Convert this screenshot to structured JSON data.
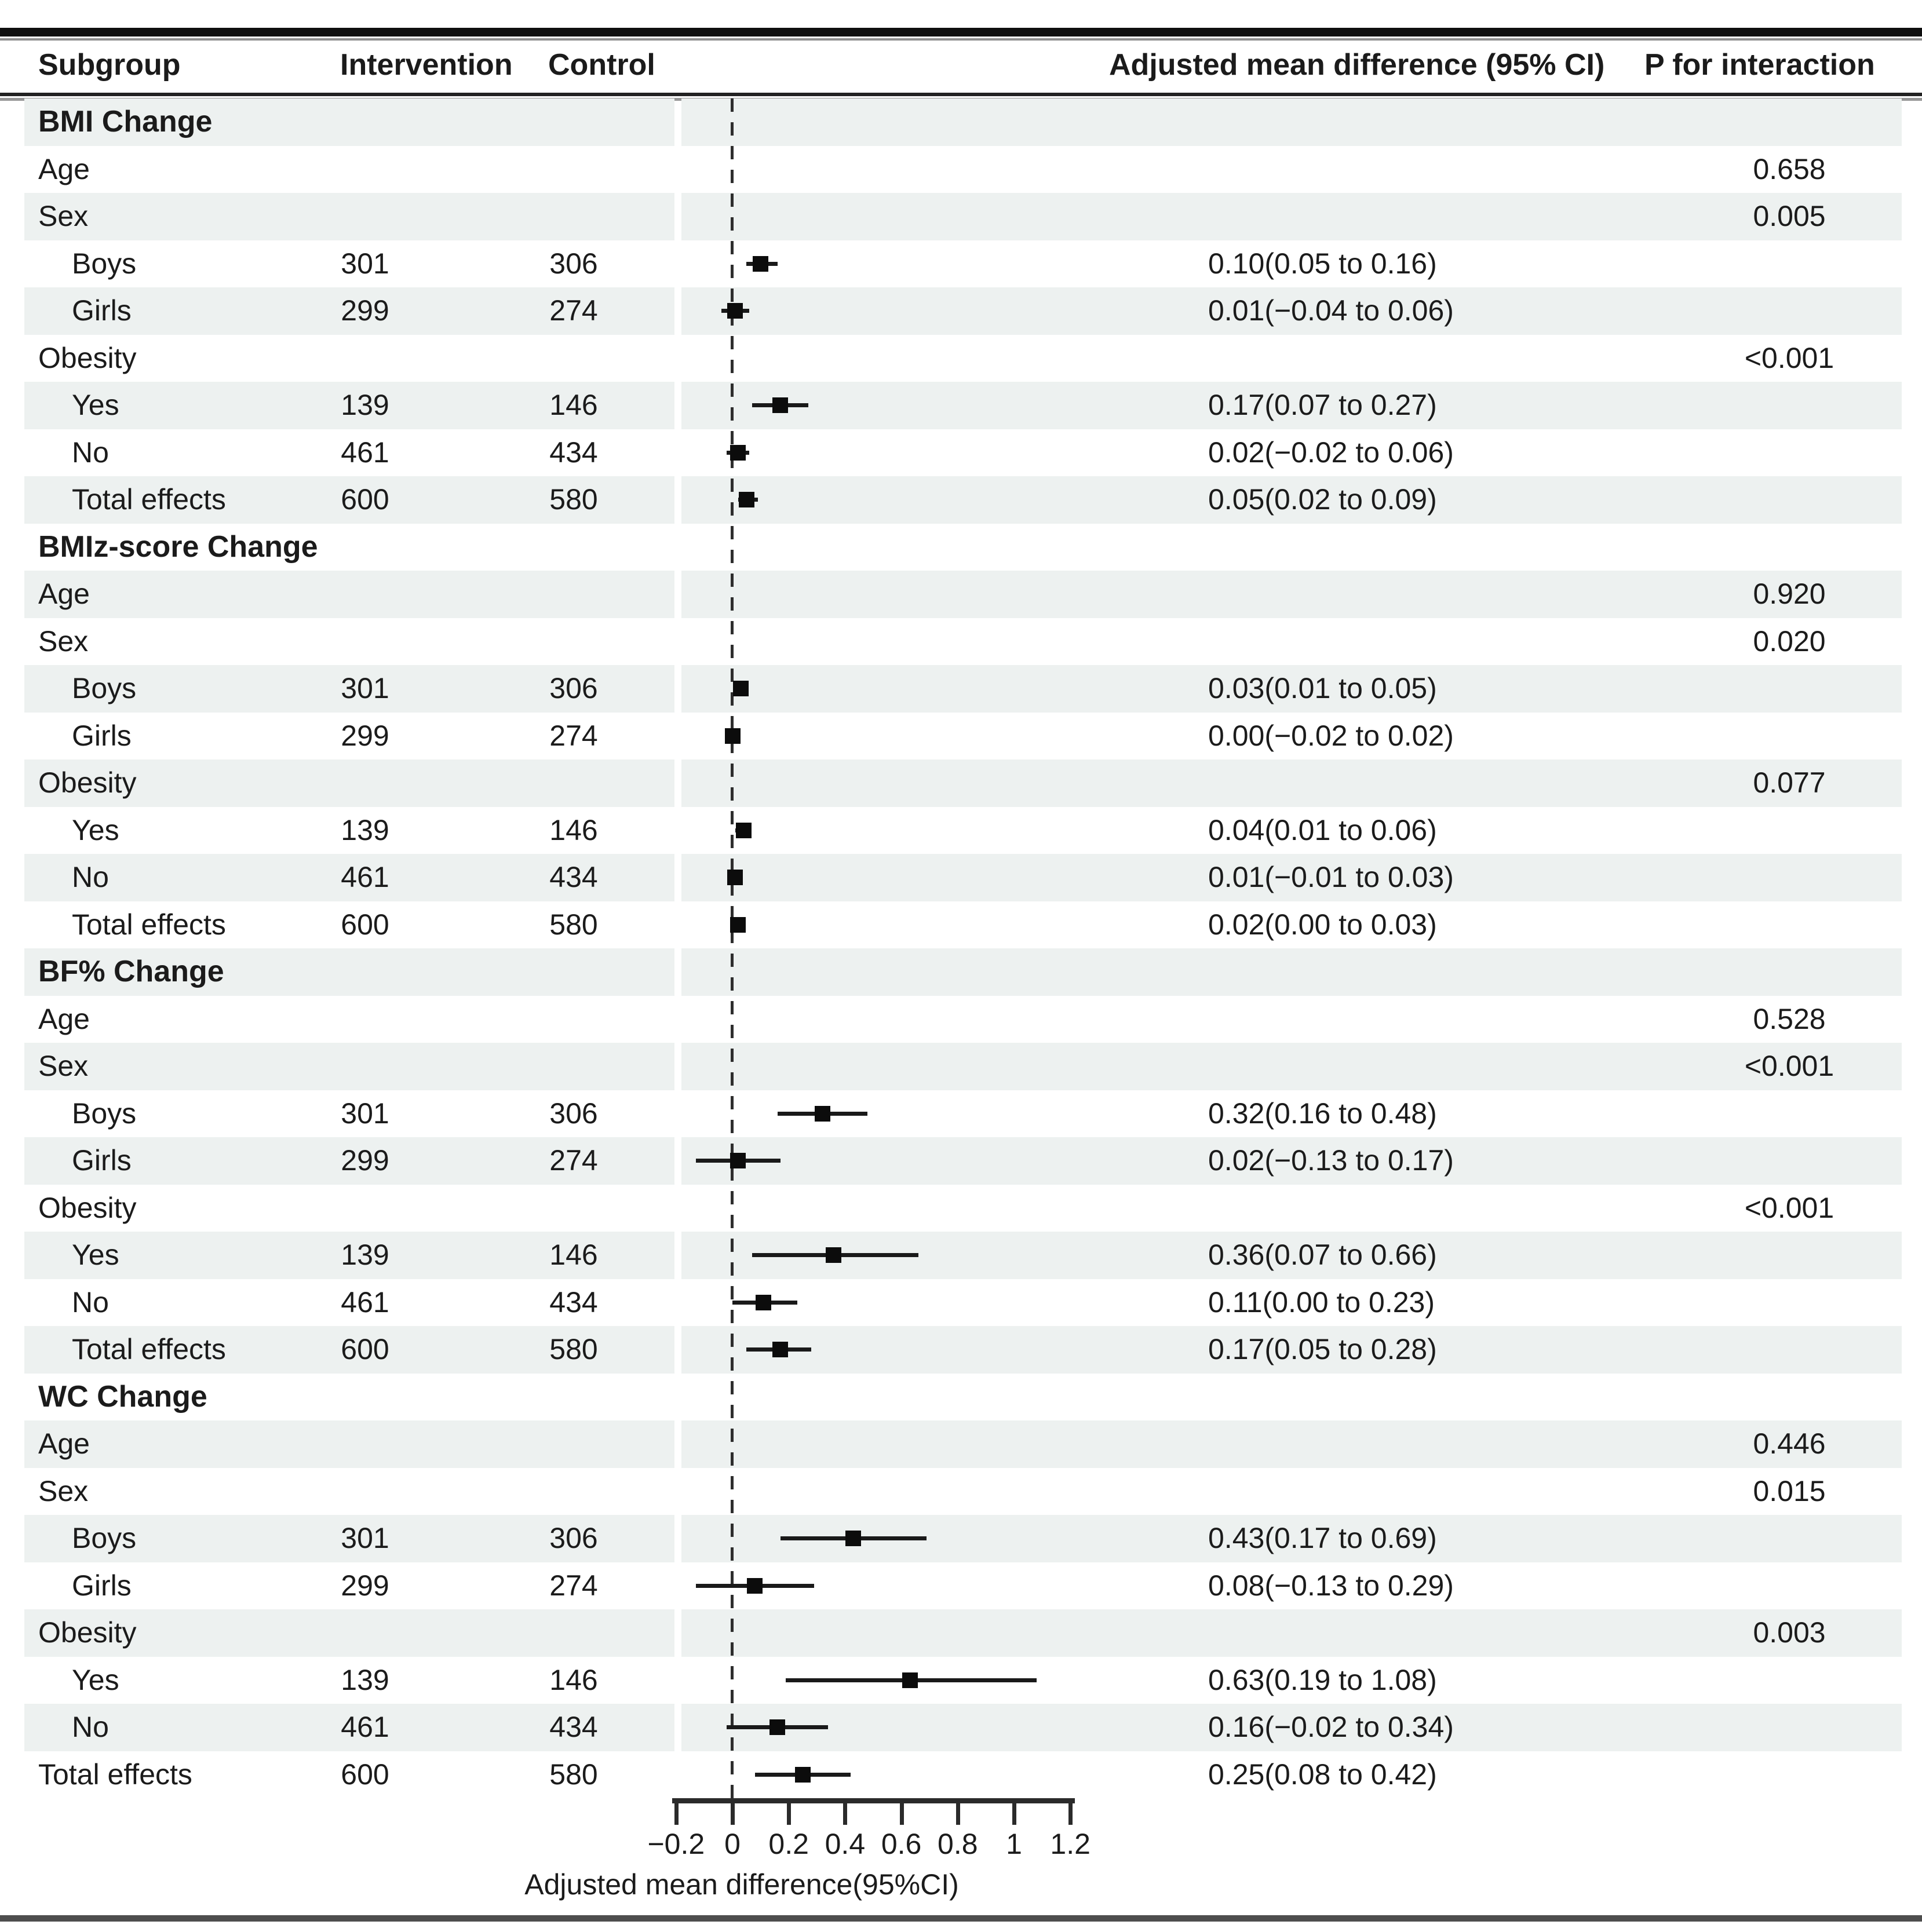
{
  "header": {
    "subgroup": "Subgroup",
    "intervention": "Intervention",
    "control": "Control",
    "effect": "Adjusted mean difference (95% CI)",
    "p": "P for interaction"
  },
  "colors": {
    "band": "#edf1f0",
    "text": "#1b1b1b",
    "marker": "#0c0c0c",
    "zero_line": "#2e2e2e"
  },
  "chart_data": {
    "type": "forest",
    "title": "",
    "xlabel": "Adjusted mean difference(95%CI)",
    "xlim": [
      -0.2,
      1.2
    ],
    "x_ticks": [
      -0.2,
      0,
      0.2,
      0.4,
      0.6,
      0.8,
      1,
      1.2
    ],
    "tick_labels": [
      "−0.2",
      "0",
      "0.2",
      "0.4",
      "0.6",
      "0.8",
      "1",
      "1.2"
    ],
    "zero_line": 0,
    "grid": false,
    "legend": null,
    "groups": [
      {
        "outcome": "BMI Change",
        "rows": [
          {
            "kind": "factor",
            "label": "Age",
            "p": "0.658"
          },
          {
            "kind": "factor",
            "label": "Sex",
            "p": "0.005"
          },
          {
            "kind": "data",
            "label": "Boys",
            "indent": true,
            "intervention": "301",
            "control": "306",
            "est": 0.1,
            "lo": 0.05,
            "hi": 0.16,
            "ci": "0.10(0.05 to 0.16)"
          },
          {
            "kind": "data",
            "label": "Girls",
            "indent": true,
            "intervention": "299",
            "control": "274",
            "est": 0.01,
            "lo": -0.04,
            "hi": 0.06,
            "ci": "0.01(−0.04 to 0.06)"
          },
          {
            "kind": "factor",
            "label": "Obesity",
            "p": "<0.001"
          },
          {
            "kind": "data",
            "label": "Yes",
            "indent": true,
            "intervention": "139",
            "control": "146",
            "est": 0.17,
            "lo": 0.07,
            "hi": 0.27,
            "ci": "0.17(0.07 to 0.27)"
          },
          {
            "kind": "data",
            "label": "No",
            "indent": true,
            "intervention": "461",
            "control": "434",
            "est": 0.02,
            "lo": -0.02,
            "hi": 0.06,
            "ci": "0.02(−0.02 to 0.06)"
          },
          {
            "kind": "data",
            "label": "Total effects",
            "indent": true,
            "intervention": "600",
            "control": "580",
            "est": 0.05,
            "lo": 0.02,
            "hi": 0.09,
            "ci": "0.05(0.02 to 0.09)"
          }
        ]
      },
      {
        "outcome": "BMIz-score Change",
        "rows": [
          {
            "kind": "factor",
            "label": "Age",
            "p": "0.920"
          },
          {
            "kind": "factor",
            "label": "Sex",
            "p": "0.020"
          },
          {
            "kind": "data",
            "label": "Boys",
            "indent": true,
            "intervention": "301",
            "control": "306",
            "est": 0.03,
            "lo": 0.01,
            "hi": 0.05,
            "ci": "0.03(0.01 to 0.05)"
          },
          {
            "kind": "data",
            "label": "Girls",
            "indent": true,
            "intervention": "299",
            "control": "274",
            "est": 0.0,
            "lo": -0.02,
            "hi": 0.02,
            "ci": "0.00(−0.02 to 0.02)"
          },
          {
            "kind": "factor",
            "label": "Obesity",
            "p": "0.077"
          },
          {
            "kind": "data",
            "label": "Yes",
            "indent": true,
            "intervention": "139",
            "control": "146",
            "est": 0.04,
            "lo": 0.01,
            "hi": 0.06,
            "ci": "0.04(0.01 to 0.06)"
          },
          {
            "kind": "data",
            "label": "No",
            "indent": true,
            "intervention": "461",
            "control": "434",
            "est": 0.01,
            "lo": -0.01,
            "hi": 0.03,
            "ci": "0.01(−0.01 to 0.03)"
          },
          {
            "kind": "data",
            "label": "Total effects",
            "indent": true,
            "intervention": "600",
            "control": "580",
            "est": 0.02,
            "lo": 0.0,
            "hi": 0.03,
            "ci": "0.02(0.00 to 0.03)"
          }
        ]
      },
      {
        "outcome": "BF% Change",
        "rows": [
          {
            "kind": "factor",
            "label": "Age",
            "p": "0.528"
          },
          {
            "kind": "factor",
            "label": "Sex",
            "p": "<0.001"
          },
          {
            "kind": "data",
            "label": "Boys",
            "indent": true,
            "intervention": "301",
            "control": "306",
            "est": 0.32,
            "lo": 0.16,
            "hi": 0.48,
            "ci": "0.32(0.16 to 0.48)"
          },
          {
            "kind": "data",
            "label": "Girls",
            "indent": true,
            "intervention": "299",
            "control": "274",
            "est": 0.02,
            "lo": -0.13,
            "hi": 0.17,
            "ci": "0.02(−0.13 to 0.17)"
          },
          {
            "kind": "factor",
            "label": "Obesity",
            "p": "<0.001"
          },
          {
            "kind": "data",
            "label": "Yes",
            "indent": true,
            "intervention": "139",
            "control": "146",
            "est": 0.36,
            "lo": 0.07,
            "hi": 0.66,
            "ci": "0.36(0.07 to 0.66)"
          },
          {
            "kind": "data",
            "label": "No",
            "indent": true,
            "intervention": "461",
            "control": "434",
            "est": 0.11,
            "lo": 0.0,
            "hi": 0.23,
            "ci": "0.11(0.00 to 0.23)"
          },
          {
            "kind": "data",
            "label": "Total effects",
            "indent": true,
            "intervention": "600",
            "control": "580",
            "est": 0.17,
            "lo": 0.05,
            "hi": 0.28,
            "ci": "0.17(0.05 to 0.28)"
          }
        ]
      },
      {
        "outcome": "WC Change",
        "rows": [
          {
            "kind": "factor",
            "label": "Age",
            "p": "0.446"
          },
          {
            "kind": "factor",
            "label": "Sex",
            "p": "0.015"
          },
          {
            "kind": "data",
            "label": "Boys",
            "indent": true,
            "intervention": "301",
            "control": "306",
            "est": 0.43,
            "lo": 0.17,
            "hi": 0.69,
            "ci": "0.43(0.17 to 0.69)"
          },
          {
            "kind": "data",
            "label": "Girls",
            "indent": true,
            "intervention": "299",
            "control": "274",
            "est": 0.08,
            "lo": -0.13,
            "hi": 0.29,
            "ci": "0.08(−0.13 to 0.29)"
          },
          {
            "kind": "factor",
            "label": "Obesity",
            "p": "0.003"
          },
          {
            "kind": "data",
            "label": "Yes",
            "indent": true,
            "intervention": "139",
            "control": "146",
            "est": 0.63,
            "lo": 0.19,
            "hi": 1.08,
            "ci": "0.63(0.19 to 1.08)"
          },
          {
            "kind": "data",
            "label": "No",
            "indent": true,
            "intervention": "461",
            "control": "434",
            "est": 0.16,
            "lo": -0.02,
            "hi": 0.34,
            "ci": "0.16(−0.02 to 0.34)"
          },
          {
            "kind": "data",
            "label": "Total effects",
            "indent": false,
            "intervention": "600",
            "control": "580",
            "est": 0.25,
            "lo": 0.08,
            "hi": 0.42,
            "ci": "0.25(0.08 to 0.42)"
          }
        ]
      }
    ]
  }
}
